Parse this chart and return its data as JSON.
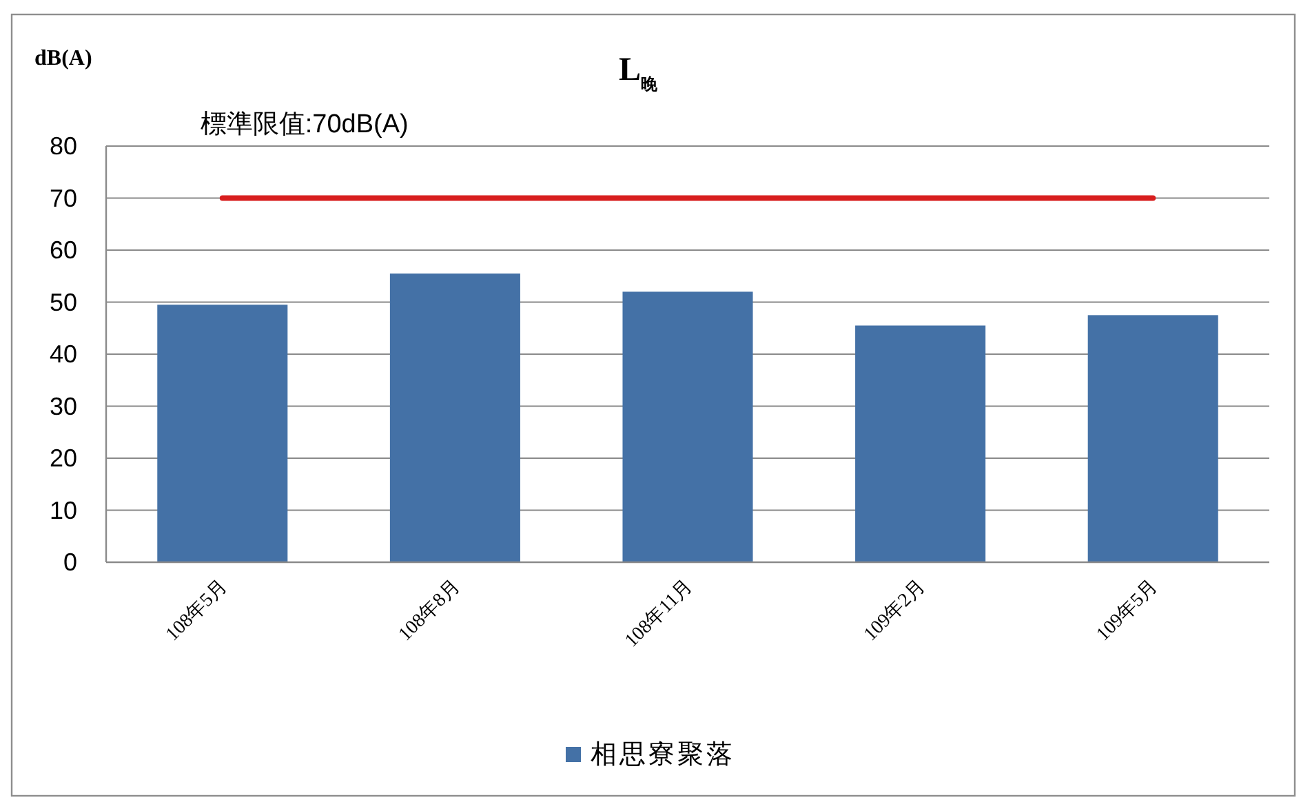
{
  "chart_data": {
    "type": "bar",
    "title": "L$_{晚}$",
    "ylabel": "dB(A)",
    "categories": [
      "108年5月",
      "108年8月",
      "108年11月",
      "109年2月",
      "109年5月"
    ],
    "series": [
      {
        "name": "相思寮聚落",
        "color": "#4471a6",
        "values": [
          49.5,
          55.5,
          52,
          45.5,
          47.5
        ]
      }
    ],
    "ylim": [
      0,
      80
    ],
    "yticks": [
      0,
      10,
      20,
      30,
      40,
      50,
      60,
      70,
      80
    ],
    "grid": "y",
    "legend": "bottom",
    "ref_lines": [
      {
        "axis": "y",
        "value": 70,
        "label": "標準限值:70dB(A)",
        "color": "#d81e1e"
      }
    ]
  }
}
